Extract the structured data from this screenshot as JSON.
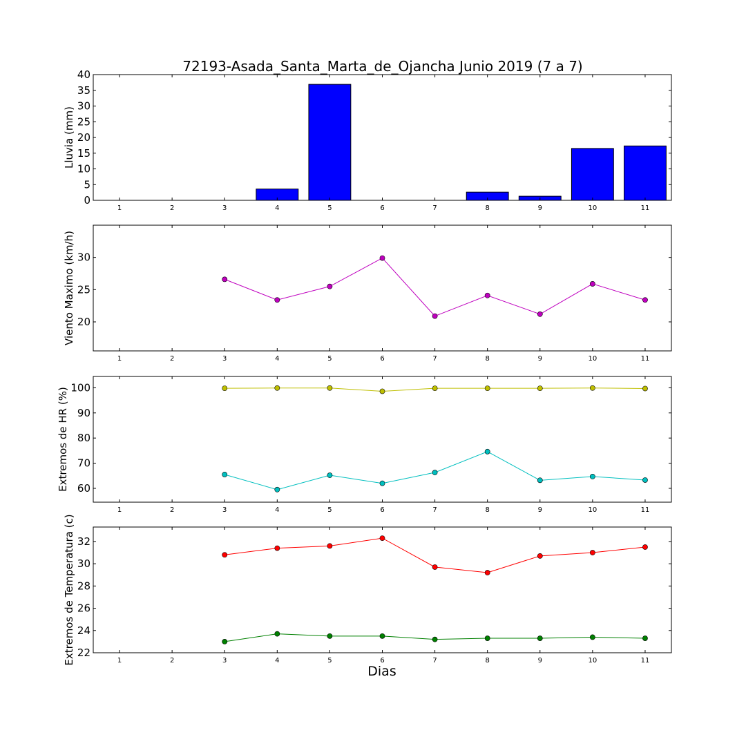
{
  "figure": {
    "title": "72193-Asada_Santa_Marta_de_Ojancha Junio 2019  (7 a 7)",
    "xlabel": "Dias"
  },
  "chart_data": [
    {
      "type": "bar",
      "ylabel": "Lluvia (mm)",
      "x": [
        1,
        2,
        3,
        4,
        5,
        6,
        7,
        8,
        9,
        10,
        11
      ],
      "xlim": [
        0.5,
        11.5
      ],
      "ylim": [
        0,
        40
      ],
      "yticks": [
        0,
        5,
        10,
        15,
        20,
        25,
        30,
        35,
        40
      ],
      "values": [
        0,
        0,
        0,
        3.6,
        36.9,
        0,
        0,
        2.6,
        1.3,
        16.5,
        17.3
      ],
      "color": "#0000ff"
    },
    {
      "type": "line",
      "ylabel": "Viento Maximo (km/h)",
      "x": [
        1,
        2,
        3,
        4,
        5,
        6,
        7,
        8,
        9,
        10,
        11
      ],
      "xlim": [
        0.5,
        11.5
      ],
      "ylim": [
        15.5,
        35
      ],
      "yticks": [
        20,
        25,
        30
      ],
      "series": [
        {
          "values": [
            null,
            null,
            26.6,
            23.4,
            25.5,
            29.9,
            20.9,
            24.1,
            21.2,
            25.9,
            23.4
          ],
          "color": "#bf00bf"
        }
      ]
    },
    {
      "type": "line",
      "ylabel": "Extremos de HR (%)",
      "x": [
        1,
        2,
        3,
        4,
        5,
        6,
        7,
        8,
        9,
        10,
        11
      ],
      "xlim": [
        0.5,
        11.5
      ],
      "ylim": [
        54.5,
        104.5
      ],
      "yticks": [
        60,
        70,
        80,
        90,
        100
      ],
      "series": [
        {
          "values": [
            null,
            null,
            99.8,
            99.9,
            99.9,
            98.6,
            99.8,
            99.8,
            99.8,
            99.9,
            99.7
          ],
          "color": "#bfbf00"
        },
        {
          "values": [
            null,
            null,
            65.5,
            59.5,
            65.2,
            62.0,
            66.3,
            74.6,
            63.2,
            64.7,
            63.3
          ],
          "color": "#00bfbf"
        }
      ]
    },
    {
      "type": "line",
      "ylabel": "Extremos de Temperatura (c)",
      "x": [
        1,
        2,
        3,
        4,
        5,
        6,
        7,
        8,
        9,
        10,
        11
      ],
      "xlim": [
        0.5,
        11.5
      ],
      "ylim": [
        22,
        33.3
      ],
      "yticks": [
        22,
        24,
        26,
        28,
        30,
        32
      ],
      "series": [
        {
          "values": [
            null,
            null,
            30.8,
            31.4,
            31.6,
            32.3,
            29.7,
            29.2,
            30.7,
            31.0,
            31.5
          ],
          "color": "#ff0000"
        },
        {
          "values": [
            null,
            null,
            23.0,
            23.7,
            23.5,
            23.5,
            23.2,
            23.3,
            23.3,
            23.4,
            23.3
          ],
          "color": "#008000"
        }
      ]
    }
  ]
}
